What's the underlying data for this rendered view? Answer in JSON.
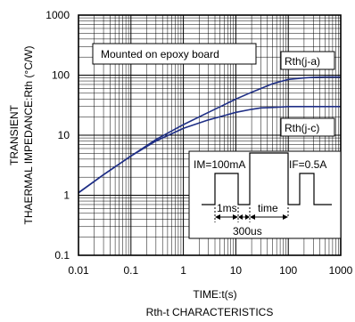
{
  "chart_data": {
    "type": "line",
    "title": "Rth-t CHARACTERISTICS",
    "xlabel": "TIME:t(s)",
    "ylabel_lines": [
      "TRANSIENT",
      "THAERMAL IMPEDANCE:Rth (°C/W)"
    ],
    "xscale": "log",
    "yscale": "log",
    "xlim": [
      0.01,
      1000
    ],
    "ylim": [
      0.1,
      1000
    ],
    "grid": true,
    "x_tick_labels": [
      "0.01",
      "0.1",
      "1",
      "10",
      "100",
      "1000"
    ],
    "y_tick_labels": [
      "0.1",
      "1",
      "10",
      "100",
      "1000"
    ],
    "series": [
      {
        "name": "Rth(j-a)",
        "x": [
          0.01,
          0.03,
          0.1,
          0.3,
          1,
          3,
          10,
          20,
          30,
          50,
          100,
          200,
          300,
          500,
          1000
        ],
        "y": [
          1.1,
          2.2,
          4.5,
          8.5,
          15,
          24,
          40,
          52,
          60,
          72,
          85,
          90,
          92,
          93,
          93
        ]
      },
      {
        "name": "Rth(j-c)",
        "x": [
          0.01,
          0.03,
          0.1,
          0.3,
          1,
          3,
          10,
          20,
          30,
          50,
          100,
          200,
          300,
          500,
          1000
        ],
        "y": [
          1.1,
          2.2,
          4.5,
          8,
          13,
          18,
          24,
          27,
          28.5,
          29,
          30,
          30,
          30,
          30,
          30
        ]
      }
    ],
    "annotations": {
      "board_note": "Mounted on epoxy board",
      "label_ja": "Rth(j-a)",
      "label_jc": "Rth(j-c)",
      "im": "IM=100mA",
      "if_label": "IF=0.5A",
      "ms": "1ms",
      "time": "time",
      "us": "300us"
    }
  }
}
